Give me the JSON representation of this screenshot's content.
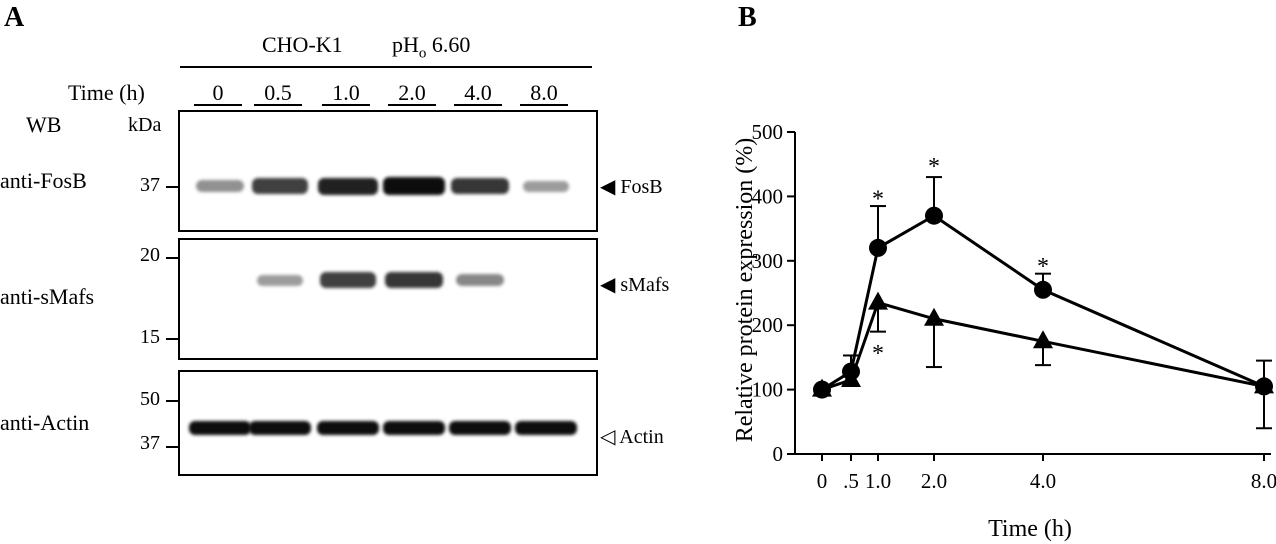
{
  "panel_a": {
    "letter": "A",
    "cell_line": "CHO-K1",
    "ph_prefix": "pH",
    "ph_sub": "o",
    "ph_value": "6.60",
    "time_label": "Time (h)",
    "time_points": [
      "0",
      "0.5",
      "1.0",
      "2.0",
      "4.0",
      "8.0"
    ],
    "wb_label": "WB",
    "kda_label": "kDa",
    "blots": [
      {
        "antibody": "anti-FosB",
        "markers": [
          "37"
        ],
        "band": "FosB",
        "arrow": "filled",
        "intensities": [
          0.35,
          0.75,
          0.9,
          1.0,
          0.8,
          0.3
        ]
      },
      {
        "antibody": "anti-sMafs",
        "markers": [
          "20",
          "15"
        ],
        "band": "sMafs",
        "arrow": "filled",
        "intensities": [
          0.0,
          0.3,
          0.75,
          0.8,
          0.4,
          0.0
        ]
      },
      {
        "antibody": "anti-Actin",
        "markers": [
          "50",
          "37"
        ],
        "band": "Actin",
        "arrow": "open",
        "intensities": [
          1.0,
          1.0,
          1.0,
          1.0,
          1.0,
          1.0
        ]
      }
    ]
  },
  "panel_b": {
    "letter": "B"
  },
  "chart_data": {
    "type": "line",
    "xlabel": "Time (h)",
    "ylabel": "Relative protein expression (%)",
    "x_ticks": [
      "0",
      ".5",
      "1.0",
      "2.0",
      "4.0",
      "8.0"
    ],
    "x_values": [
      0,
      0.5,
      1.0,
      2.0,
      4.0,
      8.0
    ],
    "y_ticks": [
      0,
      100,
      200,
      300,
      400,
      500
    ],
    "ylim": [
      0,
      500
    ],
    "series": [
      {
        "marker": "circle",
        "values": [
          100,
          128,
          320,
          370,
          255,
          105
        ],
        "error_upper": [
          0,
          0,
          385,
          430,
          280,
          145
        ],
        "error_lower": [
          0,
          0,
          0,
          0,
          0,
          0
        ]
      },
      {
        "marker": "triangle",
        "values": [
          100,
          115,
          235,
          210,
          175,
          105
        ],
        "error_upper": [
          0,
          153,
          0,
          0,
          0,
          0
        ],
        "error_lower": [
          0,
          0,
          190,
          135,
          138,
          40
        ]
      }
    ],
    "annotations": [
      {
        "text": "*",
        "x": 1.0,
        "y": 400
      },
      {
        "text": "*",
        "x": 2.0,
        "y": 450
      },
      {
        "text": "*",
        "x": 4.0,
        "y": 295
      },
      {
        "text": "*",
        "x": 1.0,
        "y": 160
      }
    ]
  }
}
